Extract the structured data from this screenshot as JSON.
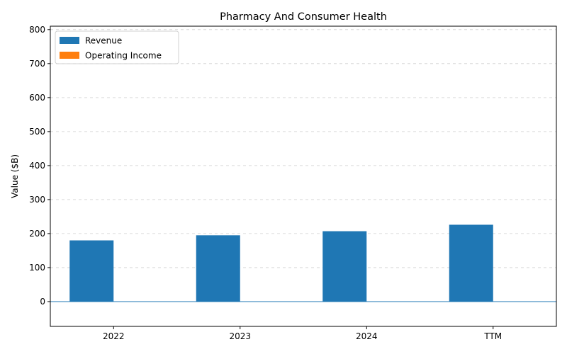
{
  "chart_data": {
    "type": "bar",
    "title": "Pharmacy And Consumer Health",
    "xlabel": "",
    "ylabel": "Value ($B)",
    "categories": [
      "2022",
      "2023",
      "2024",
      "TTM"
    ],
    "series": [
      {
        "name": "Revenue",
        "values": [
          180,
          195,
          207,
          226
        ],
        "color": "#1f77b4"
      },
      {
        "name": "Operating Income",
        "values": [
          0,
          0,
          0,
          0
        ],
        "color": "#ff7f0e"
      }
    ],
    "ylim": [
      -73,
      810
    ],
    "yticks": [
      0,
      100,
      200,
      300,
      400,
      500,
      600,
      700,
      800
    ],
    "grid": true,
    "legend_position": "top-left"
  }
}
